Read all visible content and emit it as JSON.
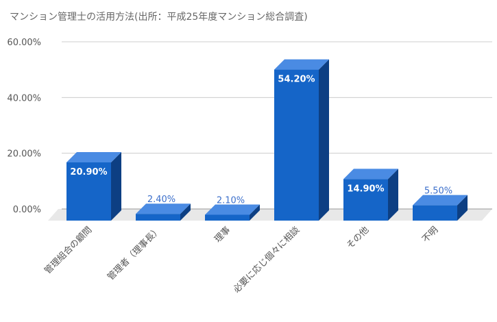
{
  "chart_data": {
    "type": "bar",
    "title": "マンション管理士の活用方法(出所：平成25年度マンション総合調査)",
    "categories": [
      "管理組合の顧問",
      "管理者（理事長）",
      "理事",
      "必要に応じ個々に相談",
      "その他",
      "不明"
    ],
    "series": [
      {
        "values": [
          20.9,
          2.4,
          2.1,
          54.2,
          14.9,
          5.5
        ],
        "value_labels": [
          "20.90%",
          "2.40%",
          "2.10%",
          "54.20%",
          "14.90%",
          "5.50%"
        ]
      }
    ],
    "ylim": [
      0,
      60
    ],
    "yticks": [
      0,
      20,
      40,
      60
    ],
    "ytick_labels": [
      "0.00%",
      "20.00%",
      "40.00%",
      "60.00%"
    ],
    "xlabel": "",
    "ylabel": "",
    "grid": true,
    "style": "3d",
    "colors": {
      "bar_front": "#1565C8",
      "bar_top": "#4A8BE3",
      "bar_side": "#0D3F83",
      "floor": "#E8E8E8",
      "grid": "#CCCCCC",
      "axis_text": "#555555",
      "label_inside": "#FFFFFF",
      "label_outside": "#3B6FCB",
      "title": "#666666"
    }
  }
}
